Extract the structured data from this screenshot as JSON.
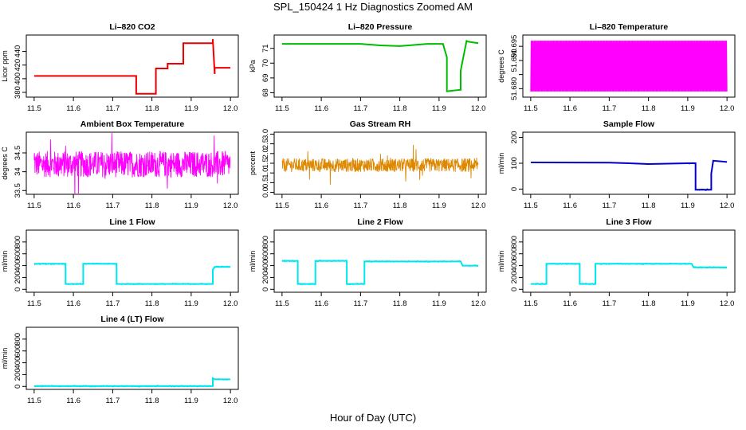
{
  "title": "SPL_150424  1 Hz Diagnostics Zoomed AM",
  "xlabel": "Hour of Day (UTC)",
  "chart_data": [
    {
      "type": "line",
      "title": "Li–820 CO2",
      "xlabel": "",
      "ylabel": "Licor ppm",
      "xlim": [
        11.48,
        12.02
      ],
      "ylim": [
        373,
        464
      ],
      "xticks": [
        "11.5",
        "11.6",
        "11.7",
        "11.8",
        "11.9",
        "12.0"
      ],
      "yticks": [
        380,
        400,
        420,
        440
      ],
      "color": "#ee0000",
      "series": [
        {
          "x": [
            11.5,
            11.76,
            11.76,
            11.81,
            11.81,
            11.84,
            11.84,
            11.88,
            11.88,
            11.955,
            11.955,
            11.96,
            11.96,
            11.98,
            11.98,
            12.0
          ],
          "y": [
            404,
            404,
            378,
            378,
            415,
            415,
            422,
            422,
            452,
            452,
            458,
            407,
            416,
            416,
            416,
            416
          ]
        }
      ]
    },
    {
      "type": "line",
      "title": "Li–820 Pressure",
      "xlabel": "",
      "ylabel": "kPa",
      "xlim": [
        11.48,
        12.02
      ],
      "ylim": [
        67.7,
        71.9
      ],
      "xticks": [
        "11.5",
        "11.6",
        "11.7",
        "11.8",
        "11.9",
        "12.0"
      ],
      "yticks": [
        68,
        69,
        70,
        71
      ],
      "color": "#00bb00",
      "series": [
        {
          "x": [
            11.5,
            11.7,
            11.75,
            11.8,
            11.87,
            11.91,
            11.92,
            11.92,
            11.955,
            11.955,
            11.97,
            11.975,
            12.0
          ],
          "y": [
            71.3,
            71.3,
            71.2,
            71.15,
            71.3,
            71.3,
            70.4,
            68.1,
            68.2,
            69.5,
            71.5,
            71.45,
            71.35
          ]
        }
      ]
    },
    {
      "type": "line",
      "title": "Li–820 Temperature",
      "xlabel": "",
      "ylabel": "degrees C",
      "xlim": [
        11.48,
        12.02
      ],
      "ylim": [
        51.677,
        51.699
      ],
      "xticks": [
        "11.5",
        "11.6",
        "11.7",
        "11.8",
        "11.9",
        "12.0"
      ],
      "yticks": [
        51.68,
        51.685,
        51.69,
        51.695
      ],
      "ytick_labels": [
        "51.680",
        "",
        "51.690",
        "51.695"
      ],
      "color": "#ff00ff",
      "series": [
        {
          "x": [
            11.5,
            12.0
          ],
          "y_low": 51.679,
          "y_high": 51.697
        }
      ]
    },
    {
      "type": "line",
      "title": "Ambient Box Temperature",
      "xlabel": "",
      "ylabel": "degrees C",
      "xlim": [
        11.48,
        12.02
      ],
      "ylim": [
        33.4,
        35.05
      ],
      "xticks": [
        "11.5",
        "11.6",
        "11.7",
        "11.8",
        "11.9",
        "12.0"
      ],
      "yticks": [
        33.5,
        34.0,
        34.5
      ],
      "color": "#ff00ff",
      "series": [
        {
          "x": [
            11.5,
            12.0
          ],
          "y_center": 34.2,
          "y_spread": 0.35
        }
      ]
    },
    {
      "type": "line",
      "title": "Gas Stream RH",
      "xlabel": "",
      "ylabel": "percent",
      "xlim": [
        11.48,
        12.02
      ],
      "ylim": [
        -0.1,
        3.1
      ],
      "xticks": [
        "11.5",
        "11.6",
        "11.7",
        "11.8",
        "11.9",
        "12.0"
      ],
      "yticks": [
        0.0,
        0.5,
        1.0,
        1.5,
        2.0,
        2.5,
        3.0
      ],
      "ytick_labels": [
        "0.0",
        "0.5",
        "1.0",
        "1.5",
        "2.0",
        "2.5",
        "3.0"
      ],
      "color": "#dd8800",
      "series": [
        {
          "x": [
            11.5,
            12.0
          ],
          "y_center": 1.4,
          "y_spread": 0.35
        }
      ]
    },
    {
      "type": "line",
      "title": "Sample Flow",
      "xlabel": "",
      "ylabel": "ml/min",
      "xlim": [
        11.48,
        12.02
      ],
      "ylim": [
        -20,
        220
      ],
      "xticks": [
        "11.5",
        "11.6",
        "11.7",
        "11.8",
        "11.9",
        "12.0"
      ],
      "yticks": [
        0,
        100,
        200
      ],
      "color": "#0000cc",
      "series": [
        {
          "x": [
            11.5,
            11.7,
            11.75,
            11.8,
            11.9,
            11.915,
            11.92,
            11.92,
            11.96,
            11.96,
            11.965,
            12.0
          ],
          "y": [
            103,
            102,
            100,
            97,
            100,
            100,
            100,
            -2,
            -2,
            60,
            110,
            105
          ]
        }
      ]
    },
    {
      "type": "line",
      "title": "Line 1 Flow",
      "xlabel": "",
      "ylabel": "ml/min",
      "xlim": [
        11.48,
        12.02
      ],
      "ylim": [
        -50,
        1000
      ],
      "xticks": [
        "11.5",
        "11.6",
        "11.7",
        "11.8",
        "11.9",
        "12.0"
      ],
      "yticks": [
        0,
        200,
        400,
        600,
        800
      ],
      "color": "#00e5ee",
      "series": [
        {
          "x": [
            11.5,
            11.58,
            11.58,
            11.625,
            11.625,
            11.71,
            11.71,
            11.955,
            11.955,
            11.96,
            12.0
          ],
          "y": [
            430,
            430,
            90,
            90,
            430,
            430,
            90,
            90,
            330,
            380,
            380
          ]
        }
      ]
    },
    {
      "type": "line",
      "title": "Line 2 Flow",
      "xlabel": "",
      "ylabel": "ml/min",
      "xlim": [
        11.48,
        12.02
      ],
      "ylim": [
        -50,
        1000
      ],
      "xticks": [
        "11.5",
        "11.6",
        "11.7",
        "11.8",
        "11.9",
        "12.0"
      ],
      "yticks": [
        0,
        200,
        400,
        600,
        800
      ],
      "color": "#00e5ee",
      "series": [
        {
          "x": [
            11.5,
            11.54,
            11.54,
            11.585,
            11.585,
            11.665,
            11.665,
            11.71,
            11.71,
            11.955,
            11.96,
            12.0
          ],
          "y": [
            480,
            480,
            90,
            90,
            480,
            480,
            90,
            90,
            470,
            470,
            400,
            400
          ]
        }
      ]
    },
    {
      "type": "line",
      "title": "Line 3 Flow",
      "xlabel": "",
      "ylabel": "ml/min",
      "xlim": [
        11.48,
        12.02
      ],
      "ylim": [
        -50,
        1000
      ],
      "xticks": [
        "11.5",
        "11.6",
        "11.7",
        "11.8",
        "11.9",
        "12.0"
      ],
      "yticks": [
        0,
        200,
        400,
        600,
        800
      ],
      "color": "#00e5ee",
      "series": [
        {
          "x": [
            11.5,
            11.54,
            11.54,
            11.625,
            11.625,
            11.665,
            11.665,
            11.91,
            11.915,
            12.0
          ],
          "y": [
            90,
            90,
            430,
            430,
            90,
            90,
            430,
            430,
            370,
            370
          ]
        }
      ]
    },
    {
      "type": "line",
      "title": "Line 4 (LT) Flow",
      "xlabel": "",
      "ylabel": "ml/min",
      "xlim": [
        11.48,
        12.02
      ],
      "ylim": [
        -50,
        1000
      ],
      "xticks": [
        "11.5",
        "11.6",
        "11.7",
        "11.8",
        "11.9",
        "12.0"
      ],
      "yticks": [
        0,
        200,
        400,
        600,
        800
      ],
      "color": "#00e5ee",
      "series": [
        {
          "x": [
            11.5,
            11.955,
            11.955,
            11.96,
            12.0
          ],
          "y": [
            5,
            5,
            140,
            120,
            120
          ]
        }
      ]
    }
  ]
}
